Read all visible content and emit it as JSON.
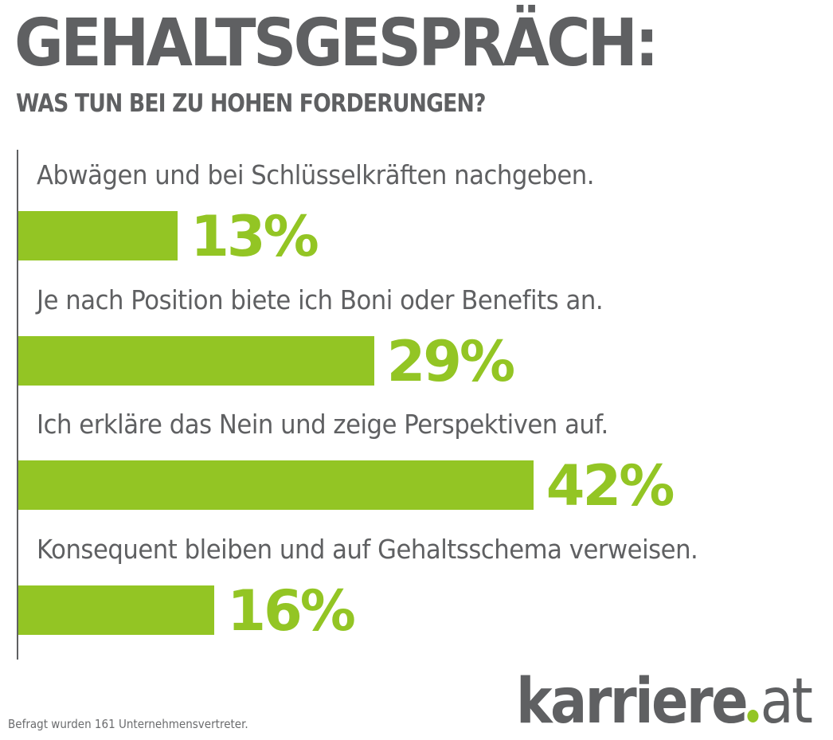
{
  "chart_data": {
    "type": "bar",
    "orientation": "horizontal",
    "title": "GEHALTSGESPRÄCH:",
    "subtitle": "WAS TUN BEI ZU HOHEN FORDERUNGEN?",
    "categories": [
      "Abwägen und bei Schlüsselkräften nachgeben.",
      "Je nach Position biete ich Boni oder Benefits an.",
      "Ich erkläre das Nein und zeige Perspektiven auf.",
      "Konsequent bleiben und auf Gehaltsschema verweisen."
    ],
    "values": [
      13,
      29,
      42,
      16
    ],
    "value_labels": [
      "13%",
      "29%",
      "42%",
      "16%"
    ],
    "unit": "%",
    "xlim": [
      0,
      100
    ],
    "grid": false,
    "legend": "none",
    "bar_color": "#93c524",
    "note": "Befragt wurden 161 Unternehmensvertreter."
  },
  "brand": {
    "name": "karriere",
    "tld": "at",
    "accent": "#93c524",
    "text_color": "#5f6062"
  }
}
